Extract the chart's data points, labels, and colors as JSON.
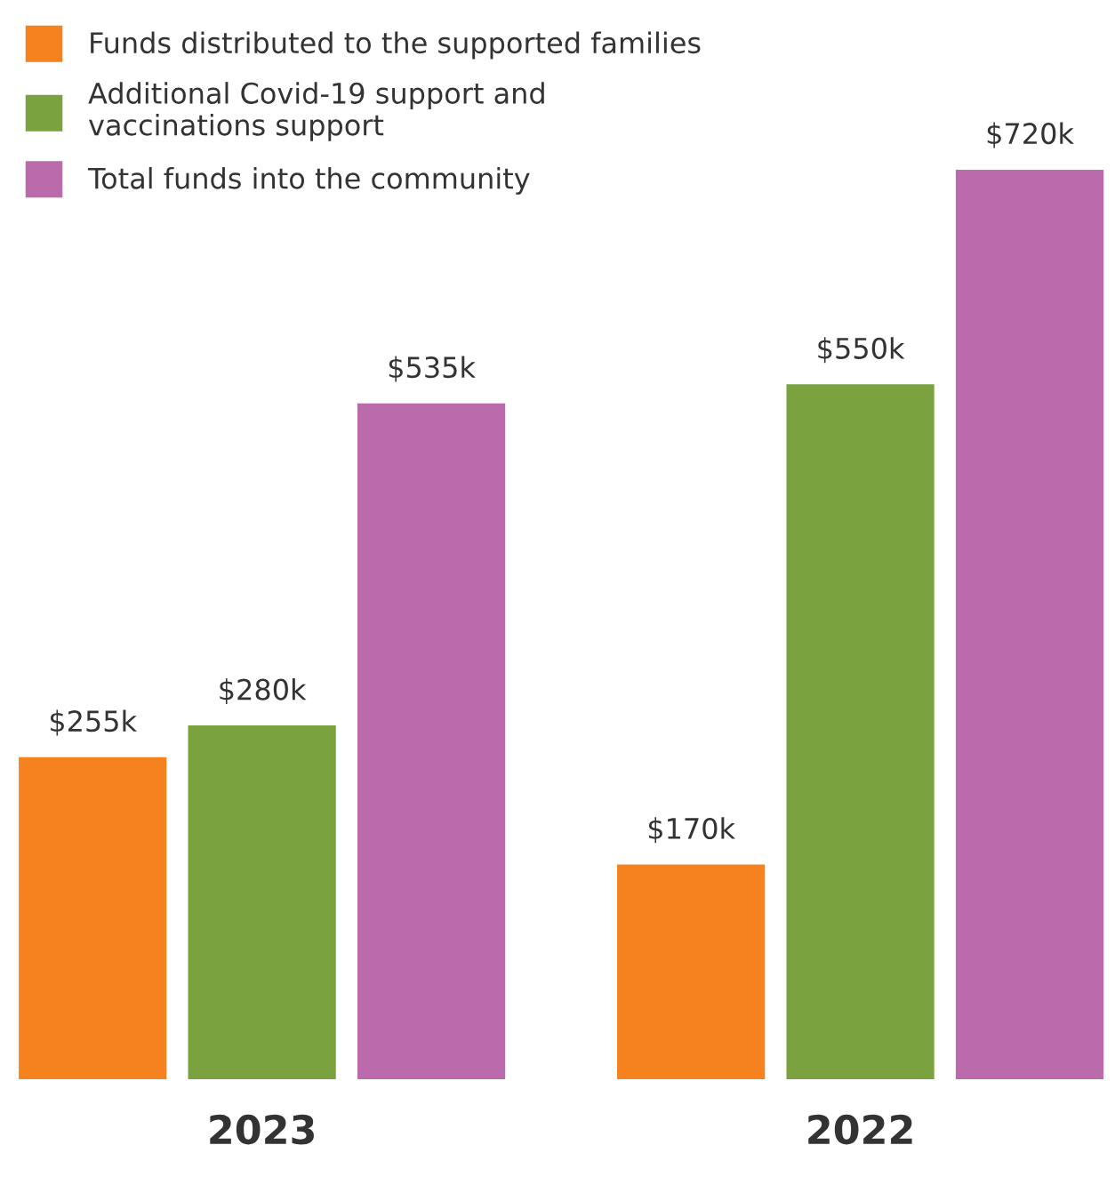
{
  "chart_data": {
    "type": "bar",
    "categories": [
      "2023",
      "2022"
    ],
    "series": [
      {
        "name": "Funds distributed to the supported families",
        "color": "#f5821f",
        "values": [
          255,
          170
        ],
        "value_labels": [
          "$255k",
          "$170k"
        ]
      },
      {
        "name": "Additional Covid-19 support and\nvaccinations support",
        "color": "#7aa23f",
        "values": [
          280,
          550
        ],
        "value_labels": [
          "$280k",
          "$550k"
        ]
      },
      {
        "name": "Total funds into the community",
        "color": "#bb6aab",
        "values": [
          535,
          720
        ],
        "value_labels": [
          "$535k",
          "$720k"
        ]
      }
    ],
    "legend": "top left"
  }
}
